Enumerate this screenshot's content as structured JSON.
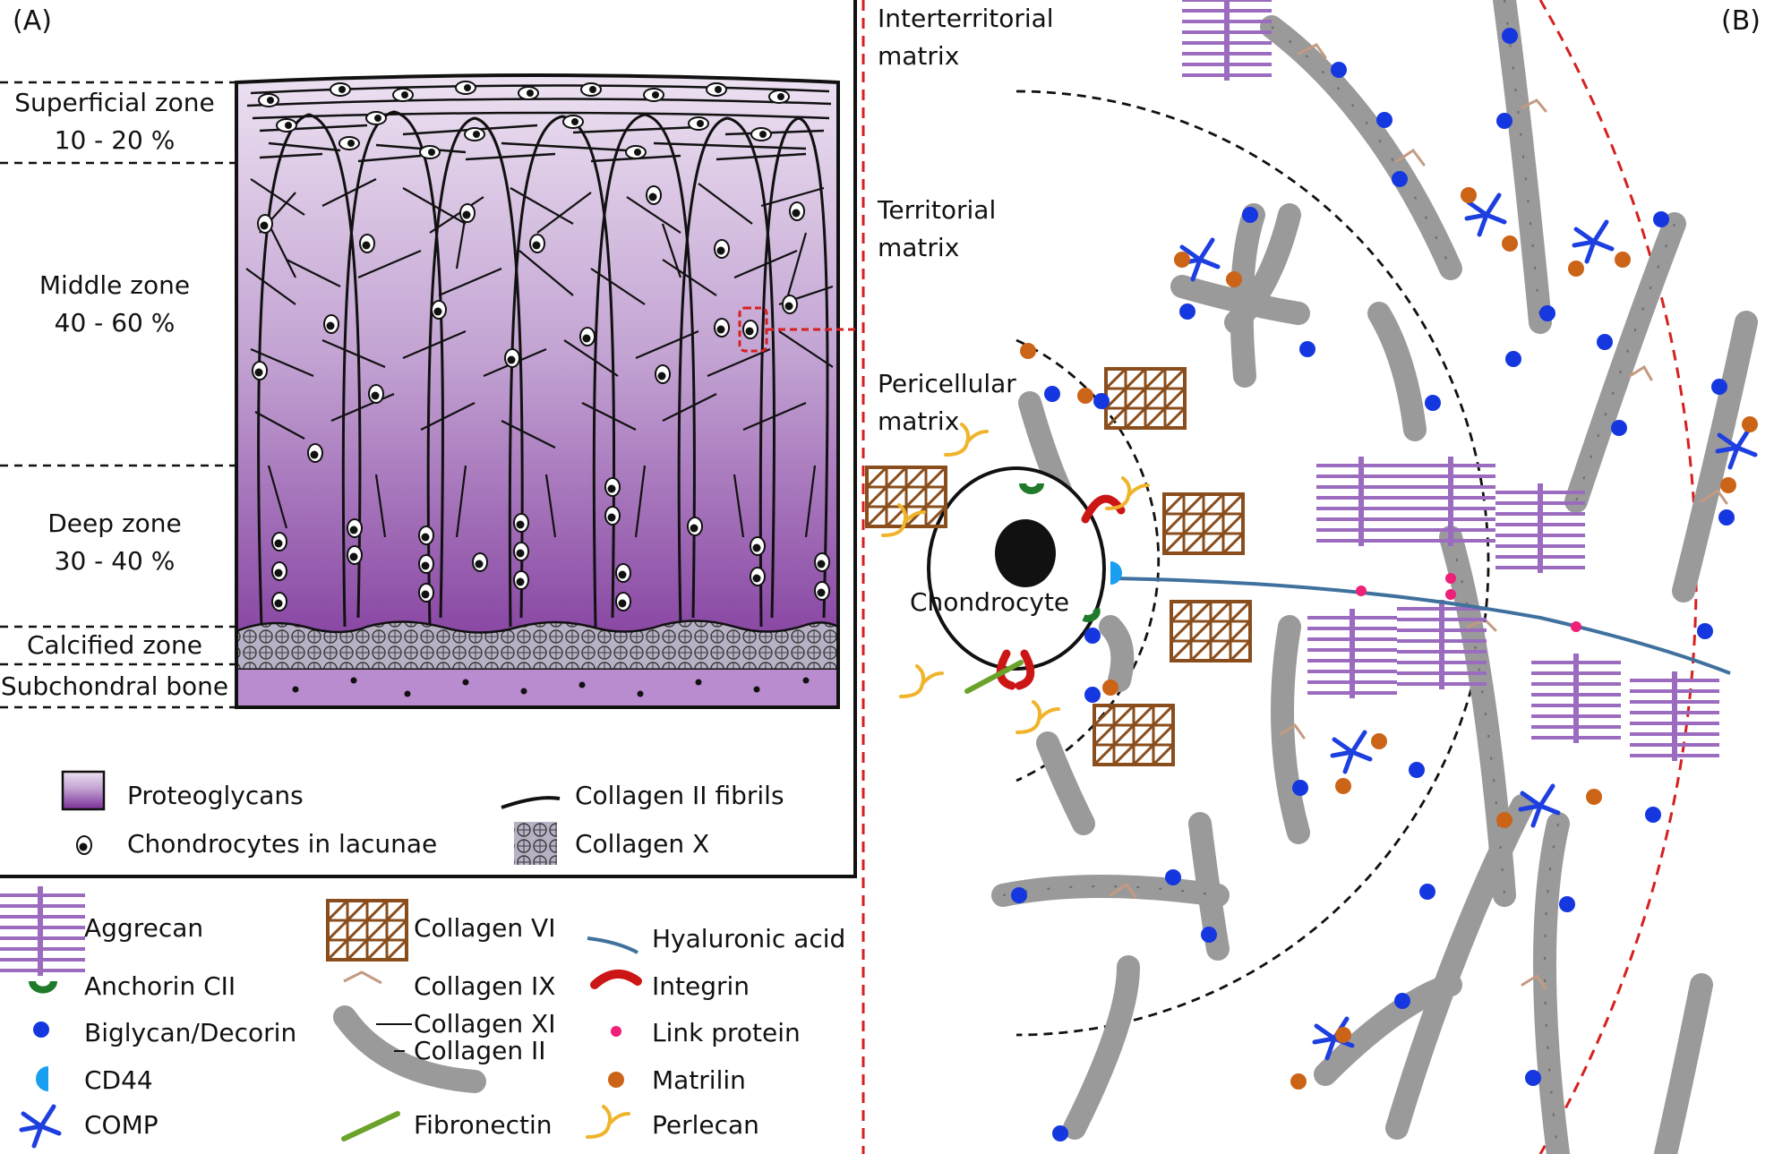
{
  "panel_a": {
    "label": "(A)",
    "zones": [
      {
        "name": "Superficial zone",
        "range": "10 - 20 %"
      },
      {
        "name": "Middle zone",
        "range": "40 - 60 %"
      },
      {
        "name": "Deep zone",
        "range": "30 - 40 %"
      },
      {
        "name": "Calcified zone"
      },
      {
        "name": "Subchondral bone"
      }
    ],
    "legend": {
      "proteoglycans": "Proteoglycans",
      "chondrocytes": "Chondrocytes in lacunae",
      "collagen_ii_fibrils": "Collagen II fibrils",
      "collagen_x": "Collagen X"
    }
  },
  "panel_b": {
    "label": "(B)",
    "regions": {
      "interterritorial": [
        "Interterritorial",
        "matrix"
      ],
      "territorial": [
        "Territorial",
        "matrix"
      ],
      "pericellular": [
        "Pericellular",
        "matrix"
      ]
    },
    "cell_label": "Chondrocyte"
  },
  "key": {
    "aggrecan": "Aggrecan",
    "anchorin": "Anchorin CII",
    "biglycan": "Biglycan/Decorin",
    "cd44": "CD44",
    "comp": "COMP",
    "collagen_vi": "Collagen VI",
    "collagen_ix": "Collagen IX",
    "collagen_xi": "Collagen XI",
    "collagen_ii": "Collagen II",
    "fibronectin": "Fibronectin",
    "hyaluronic_acid": "Hyaluronic acid",
    "integrin": "Integrin",
    "link_protein": "Link protein",
    "matrilin": "Matrilin",
    "perlecan": "Perlecan"
  },
  "colors": {
    "proteoglycan_top": "#ece1f1",
    "proteoglycan_bottom": "#7a2f97",
    "aggrecan": "#9b6bbf",
    "collagen_fibril": "#9a9a9a",
    "collagen_ix": "#c49a82",
    "biglycan_decorin": "#1537e0",
    "comp": "#1d3fe0",
    "matrilin": "#cc6418",
    "link_protein": "#ee2078",
    "cd44": "#1a9ff0",
    "anchorin": "#1f7a2a",
    "integrin": "#cc1515",
    "perlecan": "#f0b42a",
    "fibronectin": "#6aa22a",
    "collagen_vi": "#8a4d1c",
    "hyaluronic_acid": "#40719e",
    "zoom_box": "#d62020"
  }
}
